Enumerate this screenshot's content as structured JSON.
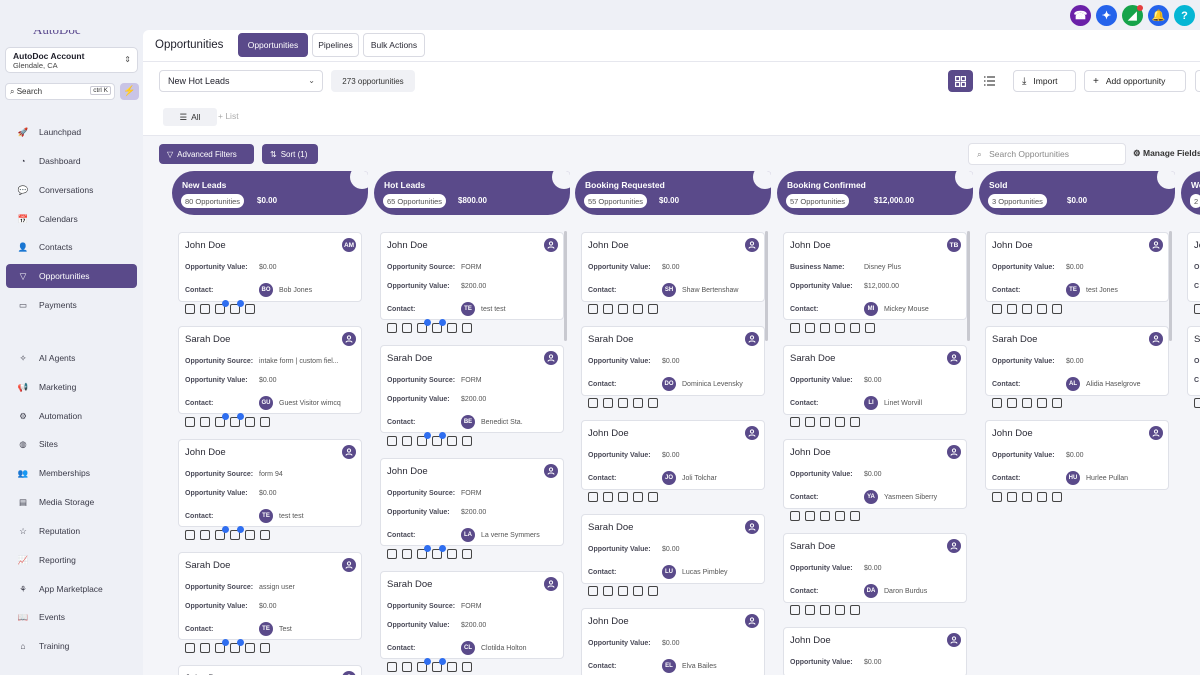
{
  "app": {
    "logo": "AutoDoc"
  },
  "topbar": {
    "icons": [
      {
        "name": "phone-icon",
        "color": "#6b21a8",
        "glyph": "☎"
      },
      {
        "name": "magic-icon",
        "color": "#2563eb",
        "glyph": "✦"
      },
      {
        "name": "announcement-icon",
        "color": "#16a34a",
        "glyph": "◢"
      },
      {
        "name": "bell-icon",
        "color": "#2563eb",
        "glyph": "🔔"
      },
      {
        "name": "help-icon",
        "color": "#06b6d4",
        "glyph": "?"
      }
    ]
  },
  "sidebar": {
    "account": {
      "name": "AutoDoc Account",
      "location": "Glendale, CA"
    },
    "search": {
      "placeholder": "Search",
      "shortcut": "ctrl K"
    },
    "items": [
      {
        "label": "Launchpad",
        "icon": "rocket-icon",
        "glyph": "🚀"
      },
      {
        "label": "Dashboard",
        "icon": "gauge-icon",
        "glyph": "◔"
      },
      {
        "label": "Conversations",
        "icon": "chat-icon",
        "glyph": "💬"
      },
      {
        "label": "Calendars",
        "icon": "calendar-icon",
        "glyph": "📅"
      },
      {
        "label": "Contacts",
        "icon": "contact-icon",
        "glyph": "👤"
      },
      {
        "label": "Opportunities",
        "icon": "funnel-icon",
        "glyph": "▽"
      },
      {
        "label": "Payments",
        "icon": "card-icon",
        "glyph": "▭"
      },
      {
        "label": "AI Agents",
        "icon": "sparkle-icon",
        "glyph": "✧"
      },
      {
        "label": "Marketing",
        "icon": "megaphone-icon",
        "glyph": "📢"
      },
      {
        "label": "Automation",
        "icon": "robot-icon",
        "glyph": "⚙"
      },
      {
        "label": "Sites",
        "icon": "globe-icon",
        "glyph": "◍"
      },
      {
        "label": "Memberships",
        "icon": "people-icon",
        "glyph": "👥"
      },
      {
        "label": "Media Storage",
        "icon": "folder-icon",
        "glyph": "▤"
      },
      {
        "label": "Reputation",
        "icon": "star-icon",
        "glyph": "☆"
      },
      {
        "label": "Reporting",
        "icon": "chart-icon",
        "glyph": "📈"
      },
      {
        "label": "App Marketplace",
        "icon": "store-icon",
        "glyph": "⚘"
      },
      {
        "label": "Events",
        "icon": "book-icon",
        "glyph": "📖"
      },
      {
        "label": "Training",
        "icon": "school-icon",
        "glyph": "⌂"
      }
    ]
  },
  "header": {
    "title": "Opportunities",
    "tabs": [
      "Opportunities",
      "Pipelines",
      "Bulk Actions"
    ]
  },
  "toolbar": {
    "pipeline": "New Hot Leads",
    "count": "273 opportunities",
    "import": "Import",
    "add": "Add opportunity",
    "filter_all": "All",
    "add_list": "List",
    "advanced_filters": "Advanced Filters",
    "sort": "Sort (1)",
    "search_placeholder": "Search Opportunities",
    "manage_fields": "Manage Fields"
  },
  "columns": [
    {
      "title": "New Leads",
      "count": "80 Opportunities",
      "amount": "$0.00",
      "cards": [
        {
          "name": "John Doe",
          "avatar": "AM",
          "rows": [
            [
              "Opportunity Value:",
              "$0.00"
            ],
            [
              "Contact:",
              "Bob Jones",
              "BO"
            ]
          ]
        },
        {
          "name": "Sarah Doe",
          "avatar": "",
          "rows": [
            [
              "Opportunity Source:",
              "intake form | custom fiel..."
            ],
            [
              "Opportunity Value:",
              "$0.00"
            ],
            [
              "Contact:",
              "Guest Visitor wimcq",
              "GU"
            ]
          ]
        },
        {
          "name": "John Doe",
          "avatar": "",
          "rows": [
            [
              "Opportunity Source:",
              "form 94"
            ],
            [
              "Opportunity Value:",
              "$0.00"
            ],
            [
              "Contact:",
              "test test",
              "TE"
            ]
          ]
        },
        {
          "name": "Sarah Doe",
          "avatar": "",
          "rows": [
            [
              "Opportunity Source:",
              "assign user"
            ],
            [
              "Opportunity Value:",
              "$0.00"
            ],
            [
              "Contact:",
              "Test",
              "TE"
            ]
          ]
        },
        {
          "name": "John Doe",
          "avatar": "",
          "rows": []
        }
      ]
    },
    {
      "title": "Hot Leads",
      "count": "65 Opportunities",
      "amount": "$800.00",
      "cards": [
        {
          "name": "John Doe",
          "avatar": "",
          "rows": [
            [
              "Opportunity Source:",
              "FORM"
            ],
            [
              "Opportunity Value:",
              "$200.00"
            ],
            [
              "Contact:",
              "test test",
              "TE"
            ]
          ]
        },
        {
          "name": "Sarah Doe",
          "avatar": "",
          "rows": [
            [
              "Opportunity Source:",
              "FORM"
            ],
            [
              "Opportunity Value:",
              "$200.00"
            ],
            [
              "Contact:",
              "Benedict Sta.",
              "BE"
            ]
          ]
        },
        {
          "name": "John Doe",
          "avatar": "",
          "rows": [
            [
              "Opportunity Source:",
              "FORM"
            ],
            [
              "Opportunity Value:",
              "$200.00"
            ],
            [
              "Contact:",
              "La verne Symmers",
              "LA"
            ]
          ]
        },
        {
          "name": "Sarah Doe",
          "avatar": "",
          "rows": [
            [
              "Opportunity Source:",
              "FORM"
            ],
            [
              "Opportunity Value:",
              "$200.00"
            ],
            [
              "Contact:",
              "Clotilda Holton",
              "CL"
            ]
          ]
        }
      ]
    },
    {
      "title": "Booking Requested",
      "count": "55 Opportunities",
      "amount": "$0.00",
      "cards": [
        {
          "name": "John Doe",
          "avatar": "",
          "rows": [
            [
              "Opportunity Value:",
              "$0.00"
            ],
            [
              "Contact:",
              "Shaw Bertenshaw",
              "SH"
            ]
          ]
        },
        {
          "name": "Sarah Doe",
          "avatar": "",
          "rows": [
            [
              "Opportunity Value:",
              "$0.00"
            ],
            [
              "Contact:",
              "Dominica Levensky",
              "DO"
            ]
          ]
        },
        {
          "name": "John Doe",
          "avatar": "",
          "rows": [
            [
              "Opportunity Value:",
              "$0.00"
            ],
            [
              "Contact:",
              "Joli Tolchar",
              "JO"
            ]
          ]
        },
        {
          "name": "Sarah Doe",
          "avatar": "",
          "rows": [
            [
              "Opportunity Value:",
              "$0.00"
            ],
            [
              "Contact:",
              "Lucas Pimbley",
              "LU"
            ]
          ]
        },
        {
          "name": "John Doe",
          "avatar": "",
          "rows": [
            [
              "Opportunity Value:",
              "$0.00"
            ],
            [
              "Contact:",
              "Elva Bailes",
              "EL"
            ]
          ]
        }
      ]
    },
    {
      "title": "Booking Confirmed",
      "count": "57 Opportunities",
      "amount": "$12,000.00",
      "cards": [
        {
          "name": "John Doe",
          "avatar": "TB",
          "rows": [
            [
              "Business Name:",
              "Disney Plus"
            ],
            [
              "Opportunity Value:",
              "$12,000.00"
            ],
            [
              "Contact:",
              "Mickey Mouse",
              "MI"
            ]
          ]
        },
        {
          "name": "Sarah Doe",
          "avatar": "",
          "rows": [
            [
              "Opportunity Value:",
              "$0.00"
            ],
            [
              "Contact:",
              "Linet Worvill",
              "LI"
            ]
          ]
        },
        {
          "name": "John Doe",
          "avatar": "",
          "rows": [
            [
              "Opportunity Value:",
              "$0.00"
            ],
            [
              "Contact:",
              "Yasmeen Siberry",
              "YA"
            ]
          ]
        },
        {
          "name": "Sarah Doe",
          "avatar": "",
          "rows": [
            [
              "Opportunity Value:",
              "$0.00"
            ],
            [
              "Contact:",
              "Daron Burdus",
              "DA"
            ]
          ]
        },
        {
          "name": "John Doe",
          "avatar": "",
          "rows": [
            [
              "Opportunity Value:",
              "$0.00"
            ]
          ]
        }
      ]
    },
    {
      "title": "Sold",
      "count": "3 Opportunities",
      "amount": "$0.00",
      "cards": [
        {
          "name": "John Doe",
          "avatar": "",
          "rows": [
            [
              "Opportunity Value:",
              "$0.00"
            ],
            [
              "Contact:",
              "test Jones",
              "TE"
            ]
          ]
        },
        {
          "name": "Sarah Doe",
          "avatar": "",
          "rows": [
            [
              "Opportunity Value:",
              "$0.00"
            ],
            [
              "Contact:",
              "Alidia Haselgrove",
              "AL"
            ]
          ]
        },
        {
          "name": "John Doe",
          "avatar": "",
          "rows": [
            [
              "Opportunity Value:",
              "$0.00"
            ],
            [
              "Contact:",
              "Hurlee Pullan",
              "HU"
            ]
          ]
        }
      ]
    },
    {
      "title": "We",
      "count": "2",
      "amount": "",
      "cards": [
        {
          "name": "Jo",
          "avatar": "",
          "rows": [
            [
              "O",
              ""
            ],
            [
              "C",
              ""
            ]
          ]
        },
        {
          "name": "Sa",
          "avatar": "",
          "rows": [
            [
              "O",
              ""
            ],
            [
              "C",
              ""
            ]
          ]
        }
      ]
    }
  ]
}
